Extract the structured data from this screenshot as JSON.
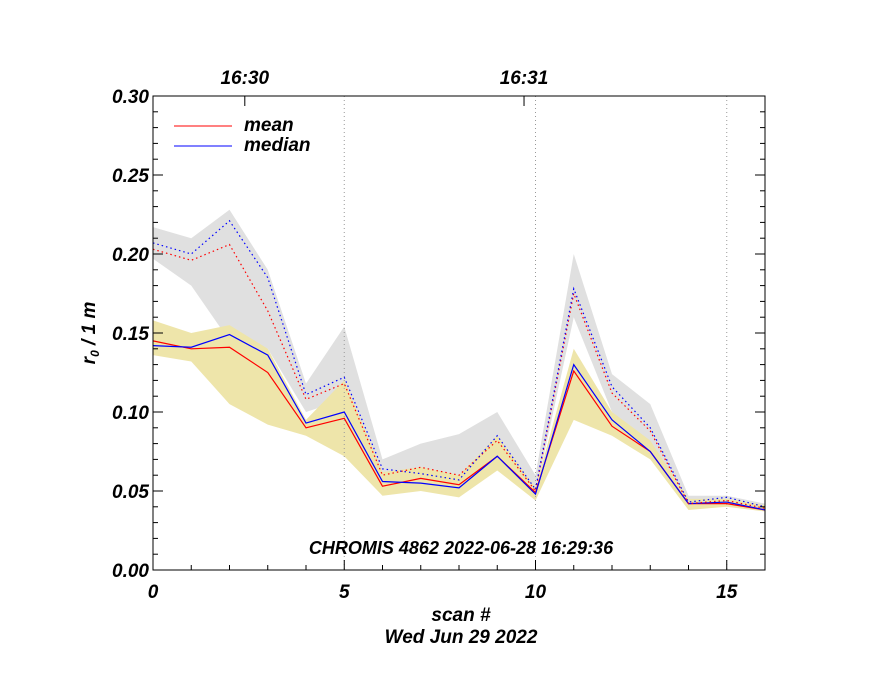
{
  "chart_data": {
    "type": "line",
    "xlabel": "scan #",
    "xlabel2": "Wed Jun 29 2022",
    "ylabel": "r",
    "ylabel_sub": "0",
    "ylabel_suffix": " / 1 m",
    "xlim": [
      0,
      16
    ],
    "ylim": [
      0,
      0.3
    ],
    "x_ticks": [
      0,
      5,
      10,
      15
    ],
    "x_tick_labels": [
      "0",
      "5",
      "10",
      "15"
    ],
    "y_ticks": [
      0.0,
      0.05,
      0.1,
      0.15,
      0.2,
      0.25,
      0.3
    ],
    "y_tick_labels": [
      "0.00",
      "0.05",
      "0.10",
      "0.15",
      "0.20",
      "0.25",
      "0.30"
    ],
    "top_axis": {
      "ticks": [
        2.4,
        9.7
      ],
      "tick_labels": [
        "16:30",
        "16:31"
      ]
    },
    "vertical_gridlines": [
      5,
      10,
      15
    ],
    "annotation": "CHROMIS 4862 2022-06-28 16:29:36",
    "legend": {
      "position": "top-left",
      "entries": [
        {
          "label": "mean",
          "color": "#ff0000"
        },
        {
          "label": "median",
          "color": "#0000ff"
        }
      ]
    },
    "x": [
      0,
      1,
      2,
      3,
      4,
      5,
      6,
      7,
      8,
      9,
      10,
      11,
      12,
      13,
      14,
      15,
      16
    ],
    "bands": [
      {
        "color": "#e0e0e0",
        "upper": [
          0.217,
          0.21,
          0.228,
          0.19,
          0.118,
          0.154,
          0.07,
          0.08,
          0.086,
          0.1,
          0.06,
          0.2,
          0.124,
          0.105,
          0.047,
          0.047,
          0.042
        ],
        "lower": [
          0.197,
          0.18,
          0.145,
          0.14,
          0.1,
          0.108,
          0.055,
          0.055,
          0.05,
          0.075,
          0.048,
          0.16,
          0.1,
          0.08,
          0.04,
          0.042,
          0.038
        ]
      },
      {
        "color": "#eee5aa",
        "upper": [
          0.158,
          0.15,
          0.155,
          0.14,
          0.095,
          0.12,
          0.062,
          0.065,
          0.06,
          0.085,
          0.052,
          0.14,
          0.1,
          0.082,
          0.045,
          0.045,
          0.041
        ],
        "lower": [
          0.136,
          0.132,
          0.105,
          0.092,
          0.085,
          0.072,
          0.047,
          0.05,
          0.046,
          0.063,
          0.044,
          0.095,
          0.085,
          0.07,
          0.038,
          0.04,
          0.037
        ]
      }
    ],
    "series": [
      {
        "color": "#ff0000",
        "style": "solid",
        "values": [
          0.145,
          0.14,
          0.141,
          0.125,
          0.09,
          0.096,
          0.053,
          0.058,
          0.054,
          0.072,
          0.049,
          0.126,
          0.091,
          0.075,
          0.042,
          0.042,
          0.038
        ]
      },
      {
        "color": "#0000ff",
        "style": "solid",
        "values": [
          0.142,
          0.141,
          0.149,
          0.136,
          0.093,
          0.1,
          0.056,
          0.055,
          0.052,
          0.072,
          0.048,
          0.13,
          0.095,
          0.075,
          0.042,
          0.043,
          0.038
        ]
      },
      {
        "color": "#ff0000",
        "style": "dotted",
        "values": [
          0.203,
          0.196,
          0.206,
          0.164,
          0.108,
          0.118,
          0.06,
          0.065,
          0.06,
          0.082,
          0.05,
          0.175,
          0.112,
          0.088,
          0.042,
          0.044,
          0.039
        ]
      },
      {
        "color": "#0000ff",
        "style": "dotted",
        "values": [
          0.207,
          0.2,
          0.221,
          0.185,
          0.111,
          0.122,
          0.064,
          0.061,
          0.057,
          0.085,
          0.051,
          0.178,
          0.116,
          0.09,
          0.043,
          0.046,
          0.04
        ]
      }
    ]
  }
}
